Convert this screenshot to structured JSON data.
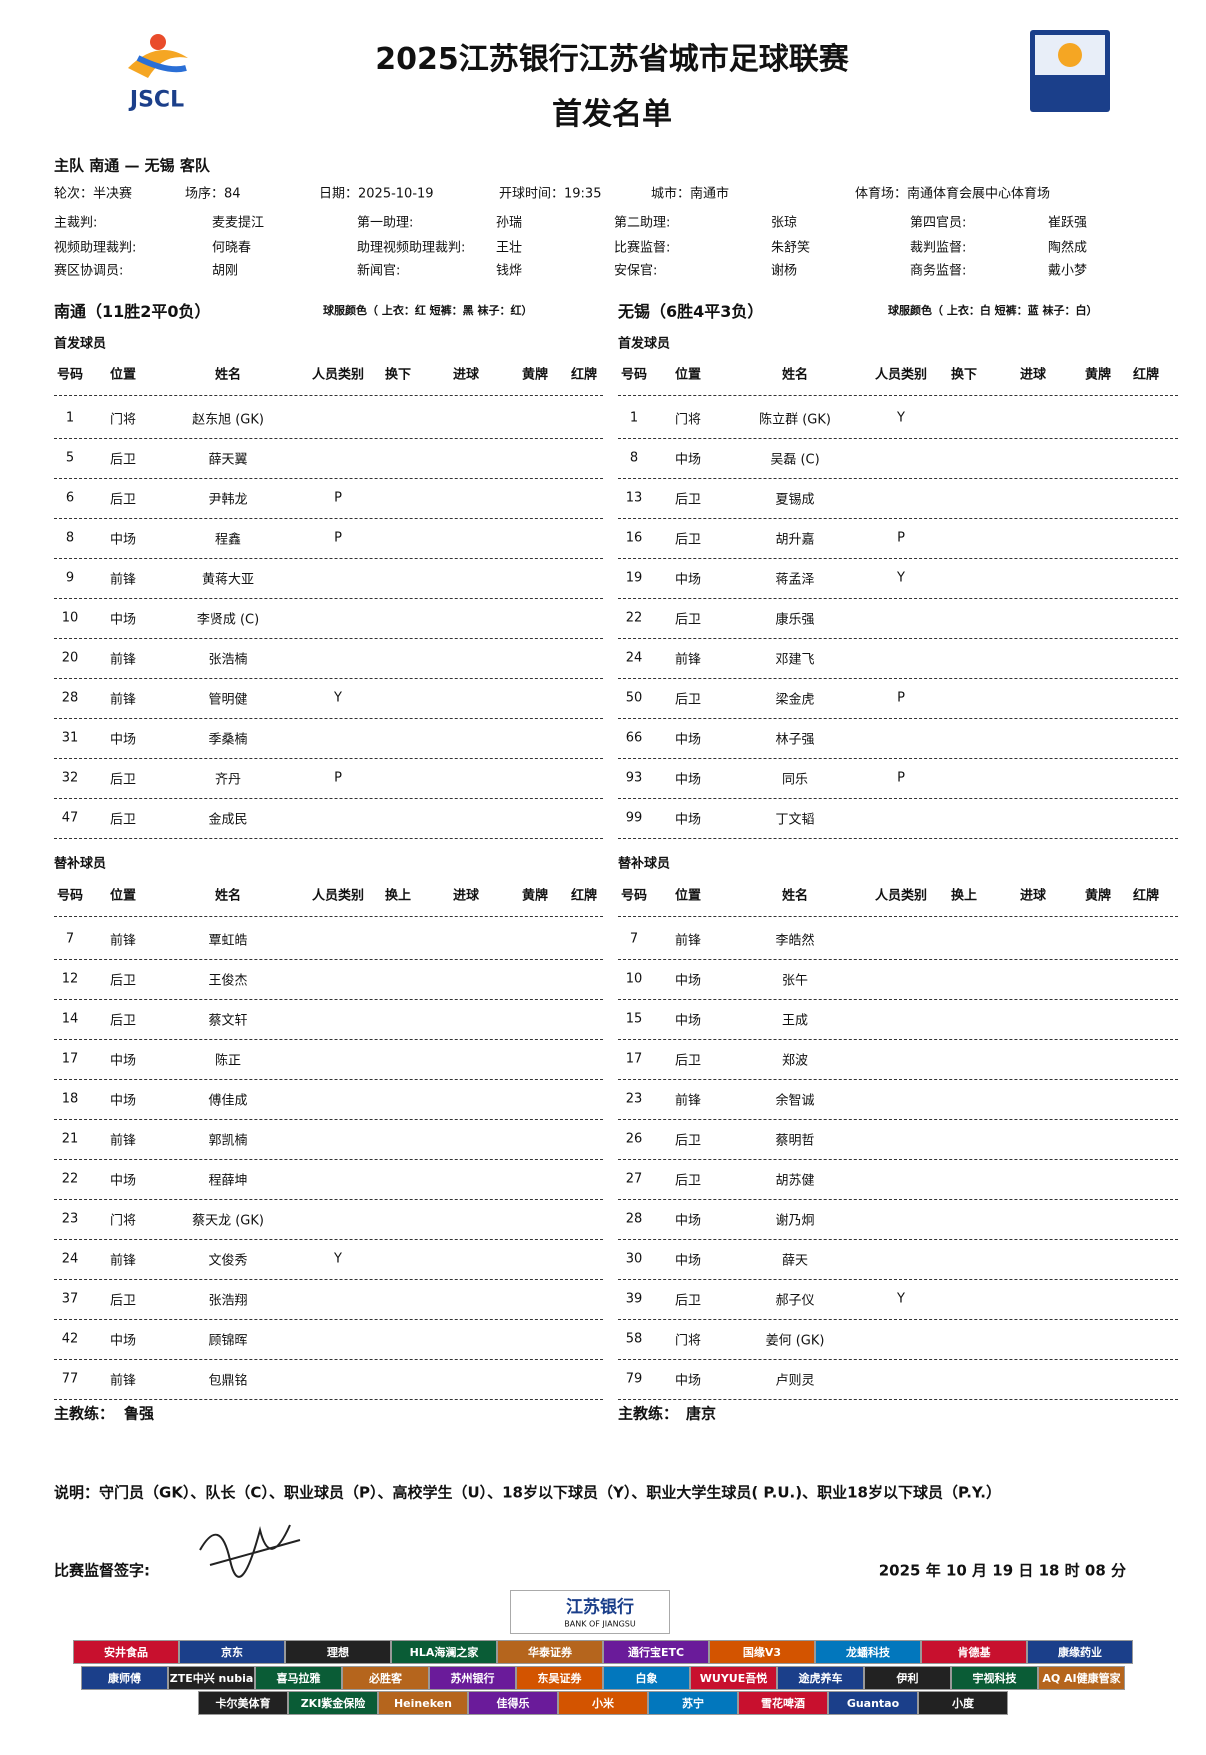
{
  "header": {
    "logo": "JSCL",
    "title": "2025江苏银行江苏省城市足球联赛",
    "subtitle": "首发名单"
  },
  "match": {
    "line": "主队 南通 — 无锡 客队",
    "info": [
      "轮次：半决赛",
      "场序：84",
      "日期：2025-10-19",
      "开球时间：19:35",
      "城市：南通市",
      "体育场：南通体育会展中心体育场"
    ],
    "officials": [
      [
        "主裁判:",
        "麦麦提江"
      ],
      [
        "第一助理:",
        "孙瑞"
      ],
      [
        "第二助理:",
        "张琼"
      ],
      [
        "第四官员:",
        "崔跃强"
      ],
      [
        "视频助理裁判:",
        "何晓春"
      ],
      [
        "助理视频助理裁判:",
        "王壮"
      ],
      [
        "比赛监督:",
        "朱舒笑"
      ],
      [
        "裁判监督:",
        "陶然成"
      ],
      [
        "赛区协调员:",
        "胡刚"
      ],
      [
        "新闻官:",
        "钱烨"
      ],
      [
        "安保官:",
        "谢杨"
      ],
      [
        "商务监督:",
        "戴小梦"
      ]
    ]
  },
  "labels": {
    "starters": "首发球员",
    "subs": "替补球员",
    "starter_headers": [
      "号码",
      "位置",
      "姓名",
      "人员类别",
      "换下",
      "进球",
      "黄牌",
      "红牌"
    ],
    "sub_headers": [
      "号码",
      "位置",
      "姓名",
      "人员类别",
      "换上",
      "进球",
      "黄牌",
      "红牌"
    ],
    "coach": "主教练："
  },
  "teams": [
    {
      "name": "南通（11胜2平0负）",
      "kit": "球服颜色（ 上衣：红 短裤：黑 袜子：红）",
      "coach": "鲁强",
      "starters": [
        [
          "1",
          "门将",
          "赵东旭 (GK)"
        ],
        [
          "5",
          "后卫",
          "薛天翼"
        ],
        [
          "6",
          "后卫",
          "尹韩龙",
          "P"
        ],
        [
          "8",
          "中场",
          "程鑫",
          "P"
        ],
        [
          "9",
          "前锋",
          "黄蒋大亚"
        ],
        [
          "10",
          "中场",
          "李贤成 (C)"
        ],
        [
          "20",
          "前锋",
          "张浩楠"
        ],
        [
          "28",
          "前锋",
          "管明健",
          "Y"
        ],
        [
          "31",
          "中场",
          "季桑楠"
        ],
        [
          "32",
          "后卫",
          "齐丹",
          "P"
        ],
        [
          "47",
          "后卫",
          "金成民"
        ]
      ],
      "subs": [
        [
          "7",
          "前锋",
          "覃虹皓"
        ],
        [
          "12",
          "后卫",
          "王俊杰"
        ],
        [
          "14",
          "后卫",
          "蔡文轩"
        ],
        [
          "17",
          "中场",
          "陈正"
        ],
        [
          "18",
          "中场",
          "傅佳成"
        ],
        [
          "21",
          "前锋",
          "郭凯楠"
        ],
        [
          "22",
          "中场",
          "程薛坤"
        ],
        [
          "23",
          "门将",
          "蔡天龙 (GK)"
        ],
        [
          "24",
          "前锋",
          "文俊秀",
          "Y"
        ],
        [
          "37",
          "后卫",
          "张浩翔"
        ],
        [
          "42",
          "中场",
          "顾锦晖"
        ],
        [
          "77",
          "前锋",
          "包鼎铭"
        ]
      ]
    },
    {
      "name": "无锡（6胜4平3负）",
      "kit": "球服颜色（ 上衣：白 短裤：蓝 袜子：白）",
      "coach": "唐京",
      "starters": [
        [
          "1",
          "门将",
          "陈立群 (GK)",
          "Y"
        ],
        [
          "8",
          "中场",
          "吴磊 (C)"
        ],
        [
          "13",
          "后卫",
          "夏锡成"
        ],
        [
          "16",
          "后卫",
          "胡升嘉",
          "P"
        ],
        [
          "19",
          "中场",
          "蒋孟泽",
          "Y"
        ],
        [
          "22",
          "后卫",
          "康乐强"
        ],
        [
          "24",
          "前锋",
          "邓建飞"
        ],
        [
          "50",
          "后卫",
          "梁金虎",
          "P"
        ],
        [
          "66",
          "中场",
          "林子强"
        ],
        [
          "93",
          "中场",
          "同乐",
          "P"
        ],
        [
          "99",
          "中场",
          "丁文韬"
        ]
      ],
      "subs": [
        [
          "7",
          "前锋",
          "李皓然"
        ],
        [
          "10",
          "中场",
          "张午"
        ],
        [
          "15",
          "中场",
          "王成"
        ],
        [
          "17",
          "后卫",
          "郑波"
        ],
        [
          "23",
          "前锋",
          "余智诚"
        ],
        [
          "26",
          "后卫",
          "蔡明哲"
        ],
        [
          "27",
          "后卫",
          "胡苏健"
        ],
        [
          "28",
          "中场",
          "谢乃炯"
        ],
        [
          "30",
          "中场",
          "薛天"
        ],
        [
          "39",
          "后卫",
          "郝子仪",
          "Y"
        ],
        [
          "58",
          "门将",
          "姜何 (GK)"
        ],
        [
          "79",
          "中场",
          "卢则灵"
        ]
      ]
    }
  ],
  "footer": {
    "note": "说明：守门员（GK）、队长（C）、职业球员（P）、高校学生（U）、18岁以下球员（Y）、职业大学生球员( P.U.)、职业18岁以下球员（P.Y.）",
    "signature_label": "比赛监督签字:",
    "timestamp": "2025 年 10 月 19 日 18 时 08 分"
  },
  "sponsors": {
    "main": "江苏银行",
    "main_en": "BANK OF JIANGSU",
    "rows": [
      [
        "安井食品",
        "京东",
        "理想",
        "HLA海澜之家",
        "华泰证券",
        "通行宝ETC",
        "国缘V3",
        "龙蟠科技",
        "肯德基",
        "康缘药业"
      ],
      [
        "康师傅",
        "ZTE中兴 nubia",
        "喜马拉雅",
        "必胜客",
        "苏州银行",
        "东吴证券",
        "白象",
        "WUYUE吾悦",
        "途虎养车",
        "伊利",
        "宇视科技",
        "AQ AI健康管家"
      ],
      [
        "卡尔美体育",
        "ZKI紫金保险",
        "Heineken",
        "佳得乐",
        "小米",
        "苏宁",
        "雪花啤酒",
        "Guantao",
        "小度"
      ]
    ]
  }
}
